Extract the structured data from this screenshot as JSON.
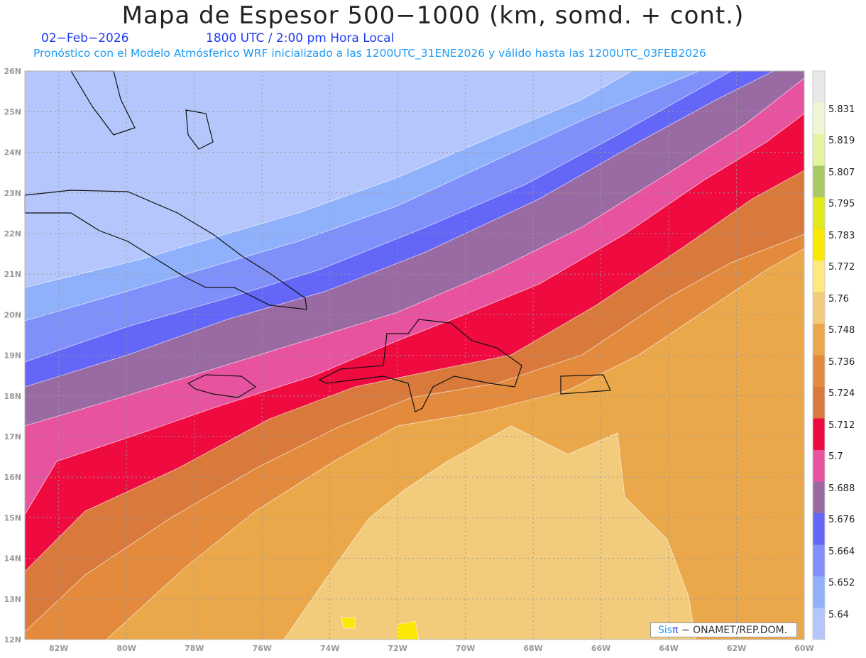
{
  "header": {
    "title": "Mapa de Espesor 500−1000 (km, somd. + cont.)",
    "date": "02−Feb−2026",
    "time": "1800 UTC / 2:00 pm Hora Local",
    "subtitle": "Pronóstico con el Modelo Atmósferico WRF inicializado a las 1200UTC_31ENE2026 y válido hasta las  1200UTC_03FEB2026"
  },
  "axes": {
    "lat_labels": [
      "26N",
      "25N",
      "24N",
      "23N",
      "22N",
      "21N",
      "20N",
      "19N",
      "18N",
      "17N",
      "16N",
      "15N",
      "14N",
      "13N",
      "12N"
    ],
    "lon_labels": [
      "82W",
      "80W",
      "78W",
      "76W",
      "74W",
      "72W",
      "70W",
      "68W",
      "66W",
      "64W",
      "62W",
      "60W"
    ]
  },
  "colorbar": {
    "labels": [
      "5.831",
      "5.819",
      "5.807",
      "5.795",
      "5.783",
      "5.772",
      "5.76",
      "5.748",
      "5.736",
      "5.724",
      "5.712",
      "5.7",
      "5.688",
      "5.676",
      "5.664",
      "5.652",
      "5.64"
    ],
    "colors": [
      "#e8e8e8",
      "#eff6d4",
      "#e4f3a0",
      "#a9c966",
      "#e1e81b",
      "#fbe805",
      "#fee87f",
      "#f2cc7c",
      "#eaa84b",
      "#e38a3d",
      "#d97a3c",
      "#ef0a3f",
      "#e853a0",
      "#9a6aa3",
      "#6366f6",
      "#7f90fb",
      "#8fb1fc",
      "#b4c6fb"
    ]
  },
  "logo": {
    "sis": "Sis",
    "pi": "π",
    "rest": " −  ONAMET/REP.DOM."
  }
}
